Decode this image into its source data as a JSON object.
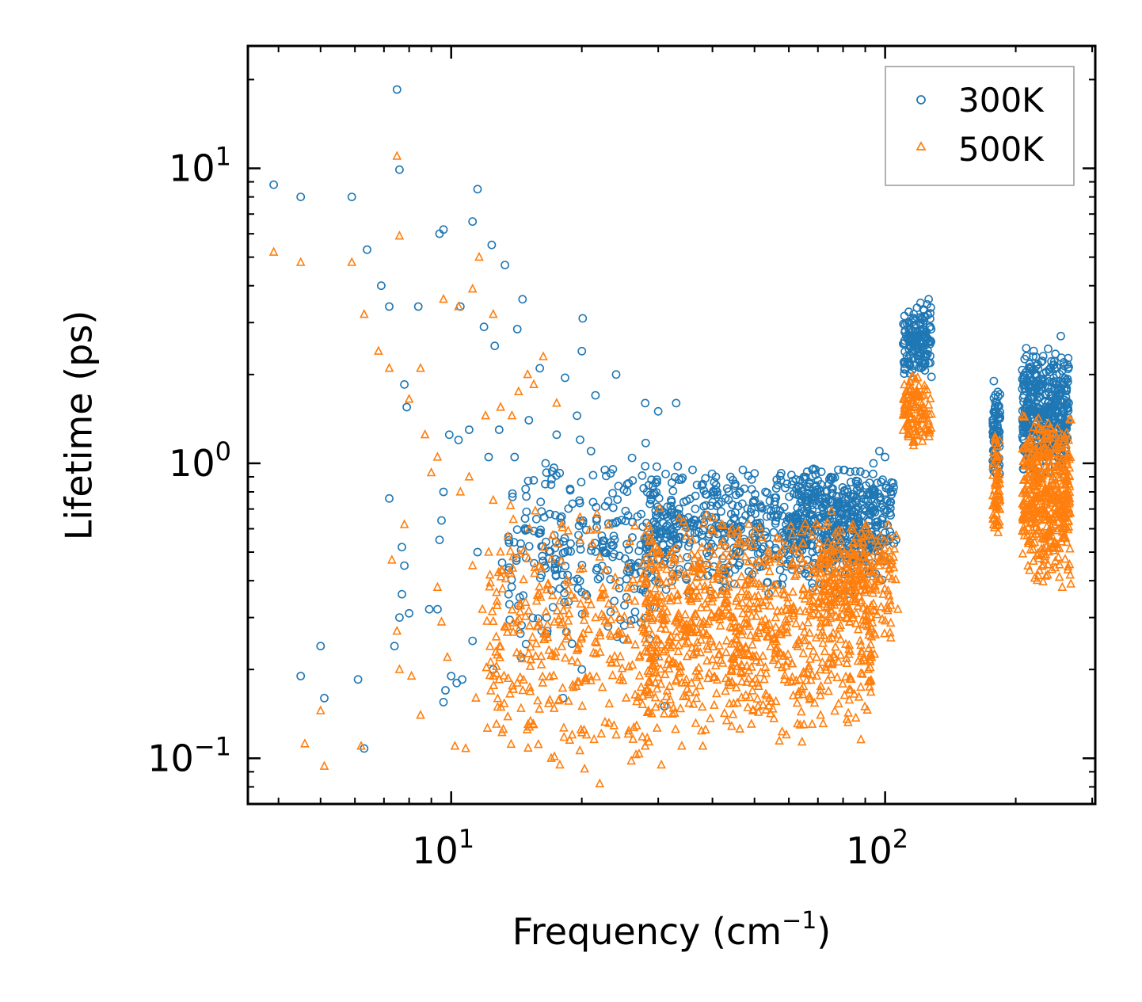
{
  "chart_data": {
    "type": "scatter",
    "title": "",
    "xlabel": "Frequency (cm",
    "xlabel_sup": "−1",
    "xlabel_end": ")",
    "ylabel": "Lifetime (ps)",
    "xscale": "log",
    "yscale": "log",
    "xlim": [
      3.4,
      305
    ],
    "ylim": [
      0.07,
      26
    ],
    "x_ticks": [
      {
        "value": 10,
        "base": "10",
        "exp": "1"
      },
      {
        "value": 100,
        "base": "10",
        "exp": "2"
      }
    ],
    "y_ticks": [
      {
        "value": 0.1,
        "base": "10",
        "exp": "−1"
      },
      {
        "value": 1,
        "base": "10",
        "exp": "0"
      },
      {
        "value": 10,
        "base": "10",
        "exp": "1"
      }
    ],
    "legend": {
      "position": "top-right"
    },
    "series": [
      {
        "name": "300K",
        "marker": "circle",
        "color": "#1f77b4",
        "points": [
          [
            3.9,
            8.8
          ],
          [
            4.5,
            8.0
          ],
          [
            5.9,
            8.0
          ],
          [
            6.4,
            5.3
          ],
          [
            6.9,
            4.0
          ],
          [
            7.2,
            3.4
          ],
          [
            7.5,
            18.5
          ],
          [
            7.6,
            9.9
          ],
          [
            7.8,
            1.85
          ],
          [
            7.9,
            1.55
          ],
          [
            8.4,
            3.4
          ],
          [
            9.4,
            6.0
          ],
          [
            9.6,
            6.2
          ],
          [
            10.5,
            3.4
          ],
          [
            11.2,
            6.6
          ],
          [
            11.5,
            8.5
          ],
          [
            11.9,
            2.9
          ],
          [
            12.4,
            5.5
          ],
          [
            12.6,
            2.5
          ],
          [
            13.3,
            4.7
          ],
          [
            14.2,
            2.85
          ],
          [
            14.6,
            3.6
          ],
          [
            16.0,
            2.1
          ],
          [
            18.3,
            1.95
          ],
          [
            20.1,
            3.1
          ],
          [
            20.0,
            2.4
          ],
          [
            21.5,
            1.7
          ],
          [
            24.0,
            2.0
          ],
          [
            28.0,
            1.6
          ],
          [
            30.0,
            1.5
          ],
          [
            33.0,
            1.6
          ],
          [
            5.0,
            0.24
          ],
          [
            5.1,
            0.16
          ],
          [
            4.5,
            0.19
          ],
          [
            6.1,
            0.185
          ],
          [
            7.2,
            0.76
          ],
          [
            7.7,
            0.52
          ],
          [
            7.8,
            0.45
          ],
          [
            7.7,
            0.36
          ],
          [
            8.0,
            0.31
          ],
          [
            8.9,
            0.32
          ],
          [
            9.5,
            0.64
          ],
          [
            9.4,
            0.55
          ],
          [
            9.6,
            0.8
          ],
          [
            10.0,
            0.19
          ],
          [
            10.6,
            0.185
          ],
          [
            11.5,
            0.5
          ],
          [
            11.2,
            0.25
          ],
          [
            7.4,
            0.24
          ],
          [
            7.6,
            0.3
          ],
          [
            9.3,
            0.32
          ],
          [
            9.9,
            1.25
          ],
          [
            10.4,
            1.2
          ],
          [
            11.0,
            1.3
          ],
          [
            12.2,
            1.05
          ],
          [
            12.9,
            1.3
          ],
          [
            14.0,
            1.05
          ],
          [
            15.1,
            1.4
          ],
          [
            16.5,
            1.0
          ],
          [
            17.5,
            1.25
          ],
          [
            19.5,
            1.45
          ],
          [
            21.0,
            1.1
          ],
          [
            22.6,
            0.95
          ],
          [
            9.7,
            0.17
          ],
          [
            9.6,
            0.155
          ],
          [
            10.3,
            0.18
          ],
          [
            6.3,
            0.108
          ],
          [
            12.5,
            0.2
          ],
          [
            13.1,
            0.46
          ],
          [
            14.5,
            0.22
          ],
          [
            16.6,
            0.3
          ],
          [
            18.1,
            0.16
          ],
          [
            20.0,
            0.2
          ],
          [
            23.0,
            0.28
          ],
          [
            29.5,
            0.22
          ],
          [
            31.0,
            0.15
          ],
          [
            33.5,
            0.7
          ],
          [
            36.0,
            0.95
          ],
          [
            38.0,
            0.85
          ],
          [
            41.0,
            0.8
          ],
          [
            44.0,
            0.9
          ],
          [
            47.0,
            0.95
          ],
          [
            50.0,
            0.75
          ],
          [
            53.0,
            0.8
          ],
          [
            56.0,
            0.7
          ],
          [
            60.0,
            0.65
          ],
          [
            63.0,
            0.62
          ],
          [
            65.0,
            0.9
          ],
          [
            67.0,
            0.85
          ],
          [
            70.0,
            0.8
          ],
          [
            74.0,
            0.75
          ],
          [
            78.0,
            0.72
          ],
          [
            82.0,
            0.8
          ],
          [
            86.0,
            0.85
          ],
          [
            90.0,
            0.92
          ],
          [
            94.0,
            1.0
          ],
          [
            97.0,
            1.1
          ],
          [
            100.0,
            1.05
          ],
          [
            103.0,
            0.8
          ],
          [
            106.0,
            0.55
          ],
          [
            68.0,
            0.5
          ],
          [
            73.0,
            0.45
          ],
          [
            111.0,
            2.1
          ],
          [
            114.0,
            2.5
          ],
          [
            117.0,
            2.8
          ],
          [
            120.0,
            3.0
          ],
          [
            123.0,
            3.3
          ],
          [
            126.0,
            3.6
          ],
          [
            178.0,
            1.9
          ],
          [
            180.0,
            1.5
          ],
          [
            182.0,
            1.2
          ],
          [
            210.0,
            1.5
          ],
          [
            215.0,
            2.1
          ],
          [
            222.0,
            1.8
          ],
          [
            228.0,
            1.4
          ],
          [
            233.0,
            1.9
          ],
          [
            240.0,
            1.3
          ],
          [
            248.0,
            1.6
          ],
          [
            254.0,
            2.7
          ],
          [
            258.0,
            2.2
          ],
          [
            262.0,
            1.8
          ]
        ],
        "clusters": [
          [
            13.5,
            30,
            0.22,
            1.25,
            260
          ],
          [
            28,
            100,
            0.35,
            1.0,
            650
          ],
          [
            60,
            105,
            0.45,
            1.0,
            280
          ],
          [
            110,
            128,
            1.9,
            3.6,
            150
          ],
          [
            177,
            184,
            0.85,
            1.9,
            80
          ],
          [
            207,
            265,
            0.85,
            2.6,
            420
          ]
        ]
      },
      {
        "name": "500K",
        "marker": "triangle",
        "color": "#ff7f0e",
        "points": [
          [
            3.9,
            5.2
          ],
          [
            4.5,
            4.8
          ],
          [
            5.9,
            4.8
          ],
          [
            6.3,
            3.2
          ],
          [
            6.8,
            2.4
          ],
          [
            7.2,
            2.1
          ],
          [
            7.5,
            11.0
          ],
          [
            7.6,
            5.9
          ],
          [
            8.0,
            1.65
          ],
          [
            8.5,
            2.1
          ],
          [
            9.6,
            3.6
          ],
          [
            10.4,
            3.4
          ],
          [
            11.2,
            3.9
          ],
          [
            11.6,
            5.0
          ],
          [
            12.0,
            1.45
          ],
          [
            12.5,
            3.2
          ],
          [
            13.0,
            1.55
          ],
          [
            13.8,
            1.45
          ],
          [
            14.3,
            1.75
          ],
          [
            15.0,
            2.0
          ],
          [
            15.5,
            1.85
          ],
          [
            16.3,
            2.3
          ],
          [
            17.5,
            1.6
          ],
          [
            4.6,
            0.112
          ],
          [
            5.1,
            0.094
          ],
          [
            5.0,
            0.145
          ],
          [
            6.2,
            0.11
          ],
          [
            7.3,
            0.47
          ],
          [
            7.5,
            0.27
          ],
          [
            7.8,
            0.62
          ],
          [
            7.6,
            0.2
          ],
          [
            8.1,
            0.19
          ],
          [
            8.5,
            0.14
          ],
          [
            9.3,
            0.38
          ],
          [
            9.5,
            0.29
          ],
          [
            9.8,
            0.22
          ],
          [
            10.2,
            0.11
          ],
          [
            10.8,
            0.108
          ],
          [
            11.2,
            0.45
          ],
          [
            11.4,
            0.16
          ],
          [
            11.8,
            0.32
          ],
          [
            12.2,
            0.5
          ],
          [
            12.5,
            0.19
          ],
          [
            13.5,
            0.28
          ],
          [
            14.2,
            0.18
          ],
          [
            17.0,
            0.1
          ],
          [
            17.8,
            0.095
          ],
          [
            19.0,
            0.12
          ],
          [
            20.5,
            0.12
          ],
          [
            22.0,
            0.082
          ],
          [
            24.0,
            0.12
          ],
          [
            26.0,
            0.098
          ],
          [
            28.0,
            0.11
          ],
          [
            30.5,
            0.095
          ],
          [
            34.0,
            0.11
          ],
          [
            38.0,
            0.11
          ],
          [
            8.7,
            1.25
          ],
          [
            9.0,
            0.93
          ],
          [
            9.3,
            1.05
          ],
          [
            10.5,
            0.8
          ],
          [
            11.0,
            0.9
          ],
          [
            12.5,
            0.75
          ],
          [
            13.7,
            0.72
          ],
          [
            18.0,
            0.62
          ],
          [
            103.0,
            0.33
          ],
          [
            107.0,
            0.32
          ],
          [
            71.0,
            0.14
          ],
          [
            65.0,
            0.13
          ],
          [
            268.0,
            0.39
          ],
          [
            256.0,
            0.38
          ]
        ],
        "clusters": [
          [
            12,
            30,
            0.09,
            0.72,
            340
          ],
          [
            28,
            95,
            0.11,
            0.72,
            900
          ],
          [
            70,
            106,
            0.24,
            0.68,
            200
          ],
          [
            110,
            128,
            1.1,
            2.1,
            120
          ],
          [
            177,
            184,
            0.5,
            1.3,
            70
          ],
          [
            207,
            268,
            0.38,
            1.6,
            480
          ]
        ]
      }
    ]
  }
}
